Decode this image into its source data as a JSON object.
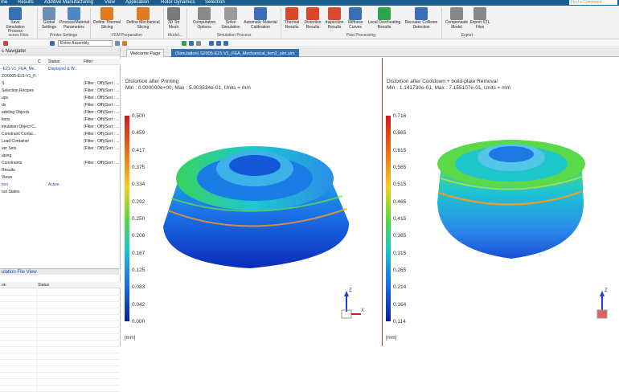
{
  "menubar": {
    "items": [
      "me",
      "Results",
      "Additive Manufacturing",
      "View",
      "Application",
      "Rotor Dynamics",
      "Selection"
    ],
    "search_placeholder": "Find a Command"
  },
  "ribbon": {
    "buttons": [
      {
        "label": "Save Simulation Process",
        "icon": "save-icon",
        "color": "#3a6fb8"
      },
      {
        "label": "Global Settings",
        "icon": "global-settings-icon",
        "color": "#6a8fb0"
      },
      {
        "label": "Process/Material Parameters",
        "icon": "process-params-icon",
        "color": "#4f86c6"
      },
      {
        "label": "Define Thermal Slicing",
        "icon": "thermal-slicing-icon",
        "color": "#e07b22"
      },
      {
        "label": "Define Mechanical Slicing",
        "icon": "mechanical-slicing-icon",
        "color": "#e07b22"
      },
      {
        "label": "3D Tet Mesh",
        "icon": "tet-mesh-icon",
        "color": "#7a7a7a"
      },
      {
        "label": "Computation Options",
        "icon": "computation-options-icon",
        "color": "#8a8a8a"
      },
      {
        "label": "Solve Simulation",
        "icon": "solve-icon",
        "color": "#9a9a9a"
      },
      {
        "label": "Automatic Material Calibration",
        "icon": "calibration-icon",
        "color": "#3a6fb8"
      },
      {
        "label": "Thermal Results",
        "icon": "thermal-results-icon",
        "color": "#d9482b"
      },
      {
        "label": "Distortion Results",
        "icon": "distortion-results-icon",
        "color": "#d9482b"
      },
      {
        "label": "Inspection Results",
        "icon": "inspection-results-icon",
        "color": "#d9482b"
      },
      {
        "label": "Stiffness Curves",
        "icon": "stiffness-curves-icon",
        "color": "#3a6fb8"
      },
      {
        "label": "Local Overheating Results",
        "icon": "overheating-icon",
        "color": "#2ea44f"
      },
      {
        "label": "Recoater Collision Detection",
        "icon": "recoater-collision-icon",
        "color": "#3a6fb8"
      },
      {
        "label": "Compensate Model",
        "icon": "compensate-icon",
        "color": "#888888"
      },
      {
        "label": "Export STL Files",
        "icon": "export-stl-icon",
        "color": "#888888"
      }
    ],
    "groups": [
      "ocess Files",
      "Printer Settings",
      "FEM Preparation",
      "Model...",
      "Simulation Process",
      "Post Processing",
      "Export"
    ]
  },
  "toolbar": {
    "assembly_combo": "Entire Assembly"
  },
  "navigator": {
    "title": "s Navigator",
    "columns": [
      "C",
      "Status",
      "Filter"
    ],
    "rows": [
      {
        "name": "-E21-V1_FEA_Me...",
        "c": "",
        "status": "Displayed & W...",
        "filter": "",
        "highlight": true
      },
      {
        "name": "ZO0005-E21-V1_F...",
        "c": "",
        "status": "",
        "filter": "",
        "highlight": false
      },
      {
        "name": "S",
        "c": "",
        "status": "",
        "filter": "(Filter : Off)(Sort : ...",
        "highlight": false
      },
      {
        "name": "Selection Recipes",
        "c": "",
        "status": "",
        "filter": "(Filter : Off)(Sort : ...",
        "highlight": false
      },
      {
        "name": "ups",
        "c": "",
        "status": "",
        "filter": "(Filter : Off)(Sort : ...",
        "highlight": false
      },
      {
        "name": "ds",
        "c": "",
        "status": "",
        "filter": "(Filter : Off)(Sort : ...",
        "highlight": false
      },
      {
        "name": "odeling Objects",
        "c": "",
        "status": "",
        "filter": "(Filter : Off)(Sort : ...",
        "highlight": false
      },
      {
        "name": "tions",
        "c": "",
        "status": "",
        "filter": "(Filter : Off)(Sort : ...",
        "highlight": false
      },
      {
        "name": "imulation Object C...",
        "c": "",
        "status": "",
        "filter": "(Filter : Off)(Sort : ...",
        "highlight": false
      },
      {
        "name": "Constraint Contai...",
        "c": "",
        "status": "",
        "filter": "(Filter : Off)(Sort : ...",
        "highlight": false
      },
      {
        "name": "Load Container",
        "c": "",
        "status": "",
        "filter": "(Filter : Off)(Sort : ...",
        "highlight": false
      },
      {
        "name": "ver Sets",
        "c": "",
        "status": "",
        "filter": "(Filter : Off)(Sort : ...",
        "highlight": false
      },
      {
        "name": "aping",
        "c": "",
        "status": "",
        "filter": "",
        "highlight": false
      },
      {
        "name": "Constraints",
        "c": "",
        "status": "",
        "filter": "(Filter : Off)(Sort : ...",
        "highlight": false
      },
      {
        "name": "Results",
        "c": "",
        "status": "",
        "filter": "",
        "highlight": false
      },
      {
        "name": "Views",
        "c": "",
        "status": "",
        "filter": "",
        "highlight": false
      },
      {
        "name": "tion",
        "c": "",
        "status": "Active",
        "filter": "",
        "highlight": true
      },
      {
        "name": "out States",
        "c": "",
        "status": "",
        "filter": "",
        "highlight": false
      }
    ]
  },
  "file_view": {
    "title": "ulation File View",
    "columns": [
      "on",
      "Status"
    ]
  },
  "tabs": [
    {
      "label": "Welcome Page",
      "active": false
    },
    {
      "label": "(Simulation) S2005-E21-V1_FEA_Mechanical_fem2_sim.sim",
      "active": true
    }
  ],
  "viewport1": {
    "title": "Distortion after Printing",
    "subtitle": "Min : 0.000000e+00, Max : 5.003534e-01, Units = mm",
    "legend": [
      "0.500",
      "0.459",
      "0.417",
      "0.375",
      "0.334",
      "0.292",
      "0.250",
      "0.208",
      "0.167",
      "0.125",
      "0.083",
      "0.042",
      "0.000"
    ],
    "unit": "[mm]"
  },
  "viewport2": {
    "title": "Distortion after Cooldown + build-plate Removal",
    "subtitle": "Min : 1.141730e-01, Max : 7.155107e-01, Units = mm",
    "legend": [
      "0.716",
      "0.665",
      "0.615",
      "0.565",
      "0.515",
      "0.465",
      "0.415",
      "0.365",
      "0.315",
      "0.265",
      "0.214",
      "0.164",
      "0.114"
    ],
    "unit": "[mm]"
  },
  "triad": {
    "z": "Z",
    "x": "X",
    "y": "Y"
  }
}
